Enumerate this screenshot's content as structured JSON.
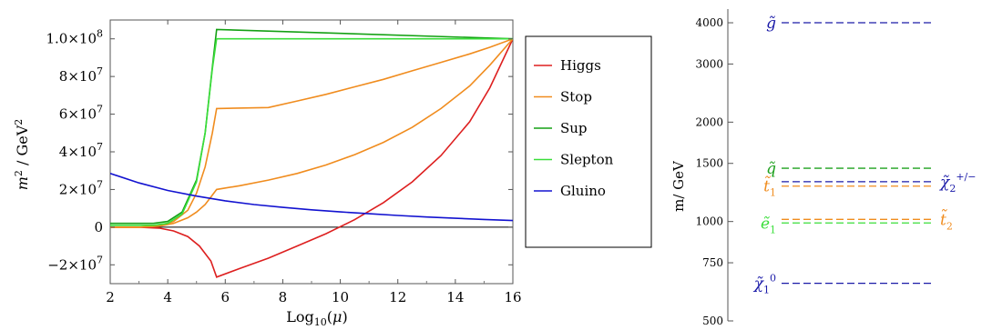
{
  "chart_data": [
    {
      "type": "line",
      "xlabel": "Log10(μ)",
      "ylabel": "m2 / GeV2",
      "xlim": [
        2,
        16
      ],
      "ylim": [
        -30000000,
        110000000
      ],
      "x_ticks": [
        2,
        4,
        6,
        8,
        10,
        12,
        14,
        16
      ],
      "y_ticks": [
        {
          "value": -20000000,
          "mantissa": "−2",
          "exp": "7"
        },
        {
          "value": 0,
          "mantissa": "0",
          "exp": ""
        },
        {
          "value": 20000000,
          "mantissa": "2",
          "exp": "7"
        },
        {
          "value": 40000000,
          "mantissa": "4",
          "exp": "7"
        },
        {
          "value": 60000000,
          "mantissa": "6",
          "exp": "7"
        },
        {
          "value": 80000000,
          "mantissa": "8",
          "exp": "7"
        },
        {
          "value": 100000000,
          "mantissa": "1.0",
          "exp": "8"
        }
      ],
      "zero_line": true,
      "grid": false,
      "legend_position": "right",
      "series": [
        {
          "name": "Higgs",
          "color": "#dd1f1f",
          "x": [
            2,
            3,
            3.7,
            4.2,
            4.7,
            5.1,
            5.5,
            5.7,
            6.5,
            7.5,
            8.5,
            9.5,
            10.5,
            11.5,
            12.5,
            13.5,
            14.5,
            15.2,
            16
          ],
          "y": [
            0,
            0,
            -500000,
            -2000000,
            -5000000,
            -10000000,
            -18000000,
            -26500000,
            -22000000,
            -16500000,
            -10000000,
            -3500000,
            4000000,
            13000000,
            24000000,
            38000000,
            56000000,
            74000000,
            100000000
          ]
        },
        {
          "name": "Stop",
          "color": "#f08c1e",
          "x": [
            2,
            3,
            3.7,
            4.2,
            4.7,
            5.0,
            5.3,
            5.55,
            5.7,
            6.5,
            7.5,
            8.5,
            9.5,
            10.5,
            11.5,
            12.5,
            13.5,
            14.5,
            15.2,
            16
          ],
          "y": [
            0,
            0,
            500000,
            2000000,
            5000000,
            8000000,
            12000000,
            17000000,
            20000000,
            22000000,
            25000000,
            28500000,
            33000000,
            38500000,
            45000000,
            53000000,
            63000000,
            75000000,
            86000000,
            100000000
          ]
        },
        {
          "name": "Stop",
          "color": "#f08c1e",
          "x": [
            2,
            3,
            3.7,
            4.2,
            4.7,
            5.0,
            5.3,
            5.55,
            5.7,
            7.5,
            8.5,
            9.5,
            10.5,
            11.5,
            12.5,
            13.5,
            14.5,
            15.2,
            16
          ],
          "y": [
            0,
            0,
            800000,
            3000000,
            9000000,
            18000000,
            32000000,
            50000000,
            63000000,
            63500000,
            67000000,
            70500000,
            74500000,
            78500000,
            83000000,
            87500000,
            92000000,
            95500000,
            100000000
          ]
        },
        {
          "name": "Sup",
          "color": "#14a014",
          "x": [
            2,
            3.5,
            4.0,
            4.5,
            5.0,
            5.3,
            5.55,
            5.7,
            16
          ],
          "y": [
            2000000,
            2000000,
            3000000,
            8000000,
            25000000,
            50000000,
            85000000,
            105000000,
            100000000
          ]
        },
        {
          "name": "Slepton",
          "color": "#3ade3a",
          "x": [
            2,
            3.5,
            4.0,
            4.5,
            5.0,
            5.3,
            5.55,
            5.7,
            16
          ],
          "y": [
            1000000,
            1000000,
            2000000,
            7000000,
            24000000,
            50000000,
            84000000,
            100000000,
            100000000
          ]
        },
        {
          "name": "Gluino",
          "color": "#1212d0",
          "x": [
            2,
            3,
            4,
            5,
            6,
            7,
            8,
            9,
            10,
            11,
            12,
            13,
            14,
            15,
            16
          ],
          "y": [
            28500000,
            23500000,
            19500000,
            16500000,
            14000000,
            12000000,
            10500000,
            9200000,
            8100000,
            7100000,
            6200000,
            5400000,
            4700000,
            4100000,
            3500000
          ]
        }
      ]
    },
    {
      "type": "spectrum",
      "ylabel": "m/ GeV",
      "yscale": "log",
      "ylim": [
        500,
        4400
      ],
      "y_ticks": [
        500,
        750,
        1000,
        1500,
        2000,
        3000,
        4000
      ],
      "levels": [
        {
          "label": "g̃",
          "sub": "",
          "sup": "",
          "mass": 4000,
          "color": "#1a1aa8",
          "label_side": "left"
        },
        {
          "label": "q̃",
          "sub": "",
          "sup": "",
          "mass": 1450,
          "color": "#1ea01e",
          "label_side": "left"
        },
        {
          "label": "χ̃",
          "sub": "2",
          "sup": "+/−",
          "mass": 1320,
          "color": "#1a1aa8",
          "label_side": "right"
        },
        {
          "label": "t̃",
          "sub": "1",
          "sup": "",
          "mass": 1280,
          "color": "#f08c1e",
          "label_side": "left"
        },
        {
          "label": "t̃",
          "sub": "2",
          "sup": "",
          "mass": 1015,
          "color": "#f08c1e",
          "label_side": "right"
        },
        {
          "label": "ẽ",
          "sub": "1",
          "sup": "",
          "mass": 990,
          "color": "#3ade3a",
          "label_side": "left"
        },
        {
          "label": "χ̃",
          "sub": "1",
          "sup": "0",
          "mass": 650,
          "color": "#1a1aa8",
          "label_side": "left"
        }
      ]
    }
  ]
}
